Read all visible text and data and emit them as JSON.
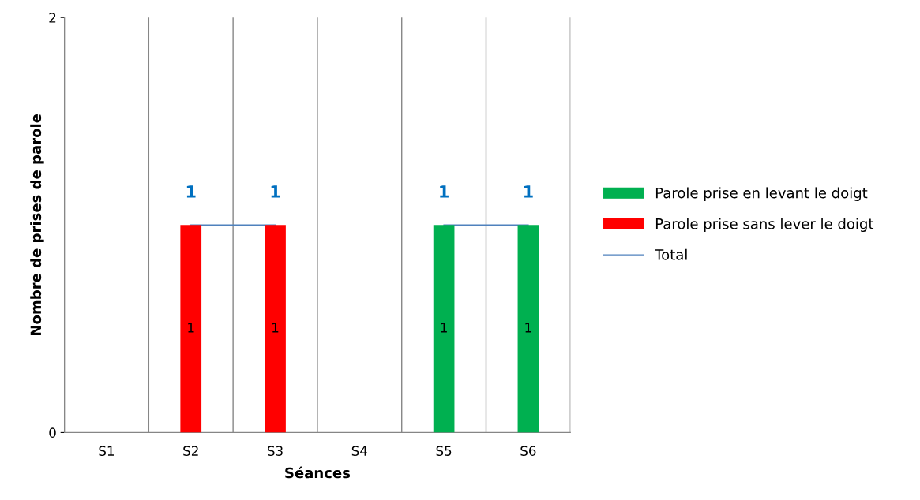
{
  "chart_data": {
    "type": "bar",
    "stacked": true,
    "xlabel": "Séances",
    "ylabel": "Nombre de prises de parole",
    "categories": [
      "S1",
      "S2",
      "S3",
      "S4",
      "S5",
      "S6"
    ],
    "series": [
      {
        "name": "Parole prise en levant le doigt",
        "color": "#00b050",
        "values": [
          0,
          0,
          0,
          0,
          1,
          1
        ],
        "value_labels": [
          null,
          null,
          null,
          null,
          "1",
          "1"
        ]
      },
      {
        "name": "Parole prise sans lever le doigt",
        "color": "#ff0000",
        "values": [
          0,
          1,
          1,
          0,
          0,
          0
        ],
        "value_labels": [
          null,
          "1",
          "1",
          null,
          null,
          null
        ]
      },
      {
        "name": "Total",
        "type": "line",
        "color": "#4f81bd",
        "values": [
          null,
          1,
          1,
          null,
          1,
          1
        ]
      }
    ],
    "totals": [
      null,
      "1",
      "1",
      null,
      "1",
      "1"
    ],
    "ylim": [
      0,
      2
    ],
    "yticks": [
      0,
      2
    ],
    "grid": "x",
    "legend": "right",
    "marker": "none",
    "line_style": "solid"
  }
}
